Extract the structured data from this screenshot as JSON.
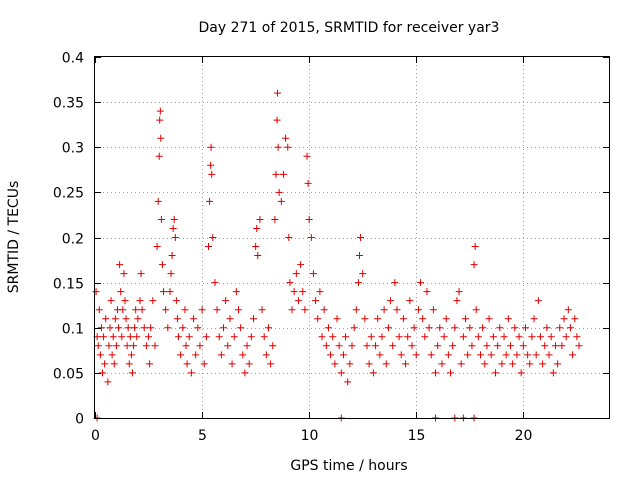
{
  "chart_data": {
    "type": "scatter",
    "title": "Day 271 of 2015, SRMTID for receiver yar3",
    "xlabel": "GPS time / hours",
    "ylabel": "SRMTID / TECUs",
    "xlim": [
      0,
      24
    ],
    "ylim": [
      0,
      0.4
    ],
    "x_ticks": [
      0,
      5,
      10,
      15,
      20
    ],
    "x_tick_labels": [
      "0",
      "5",
      "10",
      "15",
      "20"
    ],
    "y_ticks": [
      0,
      0.05,
      0.1,
      0.15,
      0.2,
      0.25,
      0.3,
      0.35,
      0.4
    ],
    "y_tick_labels": [
      "0",
      "0.05",
      "0.1",
      "0.15",
      "0.2",
      "0.25",
      "0.3",
      "0.35",
      "0.4"
    ],
    "grid": true,
    "marker": "plus",
    "color": "#e00000",
    "series": [
      {
        "name": "SRMTID",
        "points": [
          [
            0.05,
            0.14
          ],
          [
            0.1,
            0.09
          ],
          [
            0.15,
            0.08
          ],
          [
            0.2,
            0.12
          ],
          [
            0.25,
            0.07
          ],
          [
            0.3,
            0.1
          ],
          [
            0.35,
            0.05
          ],
          [
            0.4,
            0.09
          ],
          [
            0.45,
            0.06
          ],
          [
            0.5,
            0.11
          ],
          [
            0.6,
            0.04
          ],
          [
            0.65,
            0.08
          ],
          [
            0.7,
            0.1
          ],
          [
            0.75,
            0.13
          ],
          [
            0.8,
            0.07
          ],
          [
            0.85,
            0.09
          ],
          [
            0.9,
            0.06
          ],
          [
            0.95,
            0.11
          ],
          [
            1.0,
            0.08
          ],
          [
            1.05,
            0.12
          ],
          [
            1.1,
            0.1
          ],
          [
            1.15,
            0.17
          ],
          [
            1.2,
            0.14
          ],
          [
            1.25,
            0.09
          ],
          [
            1.3,
            0.12
          ],
          [
            1.35,
            0.16
          ],
          [
            1.4,
            0.13
          ],
          [
            1.45,
            0.11
          ],
          [
            1.5,
            0.08
          ],
          [
            1.55,
            0.1
          ],
          [
            1.6,
            0.06
          ],
          [
            1.65,
            0.09
          ],
          [
            1.7,
            0.07
          ],
          [
            1.75,
            0.05
          ],
          [
            1.8,
            0.08
          ],
          [
            1.85,
            0.1
          ],
          [
            1.9,
            0.12
          ],
          [
            1.95,
            0.09
          ],
          [
            2.0,
            0.11
          ],
          [
            2.1,
            0.13
          ],
          [
            2.15,
            0.16
          ],
          [
            2.2,
            0.12
          ],
          [
            2.3,
            0.1
          ],
          [
            2.4,
            0.08
          ],
          [
            2.5,
            0.09
          ],
          [
            2.55,
            0.06
          ],
          [
            2.6,
            0.1
          ],
          [
            2.7,
            0.13
          ],
          [
            2.8,
            0.08
          ],
          [
            2.9,
            0.19
          ],
          [
            2.95,
            0.24
          ],
          [
            3.0,
            0.29
          ],
          [
            3.02,
            0.33
          ],
          [
            3.05,
            0.34
          ],
          [
            3.07,
            0.31
          ],
          [
            3.1,
            0.22
          ],
          [
            3.15,
            0.17
          ],
          [
            3.2,
            0.14
          ],
          [
            3.3,
            0.12
          ],
          [
            3.4,
            0.1
          ],
          [
            3.5,
            0.14
          ],
          [
            3.55,
            0.16
          ],
          [
            3.6,
            0.18
          ],
          [
            3.65,
            0.21
          ],
          [
            3.7,
            0.22
          ],
          [
            3.75,
            0.2
          ],
          [
            3.8,
            0.13
          ],
          [
            3.85,
            0.11
          ],
          [
            3.9,
            0.09
          ],
          [
            4.0,
            0.07
          ],
          [
            4.1,
            0.1
          ],
          [
            4.2,
            0.12
          ],
          [
            4.25,
            0.08
          ],
          [
            4.3,
            0.06
          ],
          [
            4.4,
            0.09
          ],
          [
            4.5,
            0.05
          ],
          [
            4.6,
            0.11
          ],
          [
            4.7,
            0.07
          ],
          [
            4.8,
            0.1
          ],
          [
            4.9,
            0.08
          ],
          [
            5.0,
            0.12
          ],
          [
            5.1,
            0.06
          ],
          [
            5.2,
            0.09
          ],
          [
            5.3,
            0.19
          ],
          [
            5.35,
            0.24
          ],
          [
            5.4,
            0.28
          ],
          [
            5.42,
            0.3
          ],
          [
            5.45,
            0.27
          ],
          [
            5.5,
            0.2
          ],
          [
            5.6,
            0.15
          ],
          [
            5.7,
            0.12
          ],
          [
            5.8,
            0.09
          ],
          [
            5.9,
            0.07
          ],
          [
            6.0,
            0.1
          ],
          [
            6.1,
            0.13
          ],
          [
            6.2,
            0.08
          ],
          [
            6.3,
            0.11
          ],
          [
            6.4,
            0.06
          ],
          [
            6.5,
            0.09
          ],
          [
            6.6,
            0.14
          ],
          [
            6.7,
            0.12
          ],
          [
            6.8,
            0.1
          ],
          [
            6.9,
            0.07
          ],
          [
            7.0,
            0.05
          ],
          [
            7.1,
            0.08
          ],
          [
            7.2,
            0.06
          ],
          [
            7.3,
            0.09
          ],
          [
            7.4,
            0.11
          ],
          [
            7.5,
            0.19
          ],
          [
            7.55,
            0.21
          ],
          [
            7.6,
            0.18
          ],
          [
            7.7,
            0.22
          ],
          [
            7.8,
            0.12
          ],
          [
            7.9,
            0.09
          ],
          [
            8.0,
            0.07
          ],
          [
            8.1,
            0.1
          ],
          [
            8.2,
            0.06
          ],
          [
            8.3,
            0.08
          ],
          [
            8.4,
            0.22
          ],
          [
            8.45,
            0.27
          ],
          [
            8.5,
            0.33
          ],
          [
            8.52,
            0.36
          ],
          [
            8.55,
            0.3
          ],
          [
            8.6,
            0.25
          ],
          [
            8.7,
            0.24
          ],
          [
            8.8,
            0.27
          ],
          [
            8.9,
            0.31
          ],
          [
            9.0,
            0.3
          ],
          [
            9.05,
            0.2
          ],
          [
            9.1,
            0.15
          ],
          [
            9.2,
            0.12
          ],
          [
            9.3,
            0.14
          ],
          [
            9.4,
            0.16
          ],
          [
            9.5,
            0.13
          ],
          [
            9.6,
            0.17
          ],
          [
            9.7,
            0.14
          ],
          [
            9.8,
            0.12
          ],
          [
            9.9,
            0.29
          ],
          [
            9.95,
            0.26
          ],
          [
            10.0,
            0.22
          ],
          [
            10.1,
            0.2
          ],
          [
            10.2,
            0.16
          ],
          [
            10.3,
            0.13
          ],
          [
            10.4,
            0.11
          ],
          [
            10.5,
            0.14
          ],
          [
            10.6,
            0.09
          ],
          [
            10.7,
            0.12
          ],
          [
            10.8,
            0.08
          ],
          [
            10.9,
            0.1
          ],
          [
            11.0,
            0.07
          ],
          [
            11.1,
            0.09
          ],
          [
            11.2,
            0.06
          ],
          [
            11.3,
            0.11
          ],
          [
            11.4,
            0.08
          ],
          [
            11.5,
            0.05
          ],
          [
            11.6,
            0.07
          ],
          [
            11.7,
            0.09
          ],
          [
            11.8,
            0.04
          ],
          [
            11.9,
            0.06
          ],
          [
            12.0,
            0.08
          ],
          [
            12.1,
            0.1
          ],
          [
            12.2,
            0.12
          ],
          [
            12.3,
            0.15
          ],
          [
            12.35,
            0.18
          ],
          [
            12.4,
            0.2
          ],
          [
            12.5,
            0.16
          ],
          [
            12.6,
            0.11
          ],
          [
            12.7,
            0.08
          ],
          [
            12.8,
            0.06
          ],
          [
            12.9,
            0.09
          ],
          [
            13.0,
            0.05
          ],
          [
            13.1,
            0.08
          ],
          [
            13.2,
            0.11
          ],
          [
            13.3,
            0.07
          ],
          [
            13.4,
            0.09
          ],
          [
            13.5,
            0.12
          ],
          [
            13.6,
            0.06
          ],
          [
            13.7,
            0.1
          ],
          [
            13.8,
            0.13
          ],
          [
            13.9,
            0.08
          ],
          [
            14.0,
            0.15
          ],
          [
            14.1,
            0.12
          ],
          [
            14.2,
            0.09
          ],
          [
            14.3,
            0.07
          ],
          [
            14.4,
            0.11
          ],
          [
            14.5,
            0.06
          ],
          [
            14.6,
            0.09
          ],
          [
            14.7,
            0.13
          ],
          [
            14.8,
            0.08
          ],
          [
            14.9,
            0.1
          ],
          [
            15.0,
            0.07
          ],
          [
            15.1,
            0.12
          ],
          [
            15.2,
            0.15
          ],
          [
            15.3,
            0.11
          ],
          [
            15.4,
            0.09
          ],
          [
            15.5,
            0.14
          ],
          [
            15.6,
            0.1
          ],
          [
            15.7,
            0.07
          ],
          [
            15.8,
            0.12
          ],
          [
            15.9,
            0.05
          ],
          [
            16.0,
            0.08
          ],
          [
            16.1,
            0.1
          ],
          [
            16.2,
            0.06
          ],
          [
            16.3,
            0.09
          ],
          [
            16.4,
            0.11
          ],
          [
            16.5,
            0.07
          ],
          [
            16.6,
            0.05
          ],
          [
            16.7,
            0.08
          ],
          [
            16.8,
            0.1
          ],
          [
            16.9,
            0.13
          ],
          [
            17.0,
            0.14
          ],
          [
            17.1,
            0.06
          ],
          [
            17.2,
            0.09
          ],
          [
            17.3,
            0.11
          ],
          [
            17.4,
            0.07
          ],
          [
            17.5,
            0.1
          ],
          [
            17.6,
            0.08
          ],
          [
            17.7,
            0.17
          ],
          [
            17.75,
            0.19
          ],
          [
            17.8,
            0.12
          ],
          [
            17.9,
            0.09
          ],
          [
            18.0,
            0.07
          ],
          [
            18.1,
            0.1
          ],
          [
            18.2,
            0.06
          ],
          [
            18.3,
            0.08
          ],
          [
            18.4,
            0.11
          ],
          [
            18.5,
            0.07
          ],
          [
            18.6,
            0.09
          ],
          [
            18.7,
            0.05
          ],
          [
            18.8,
            0.08
          ],
          [
            18.9,
            0.1
          ],
          [
            19.0,
            0.06
          ],
          [
            19.1,
            0.09
          ],
          [
            19.2,
            0.07
          ],
          [
            19.3,
            0.11
          ],
          [
            19.4,
            0.08
          ],
          [
            19.5,
            0.06
          ],
          [
            19.6,
            0.1
          ],
          [
            19.7,
            0.07
          ],
          [
            19.8,
            0.09
          ],
          [
            19.9,
            0.05
          ],
          [
            20.0,
            0.08
          ],
          [
            20.1,
            0.1
          ],
          [
            20.2,
            0.07
          ],
          [
            20.3,
            0.06
          ],
          [
            20.4,
            0.09
          ],
          [
            20.5,
            0.11
          ],
          [
            20.6,
            0.07
          ],
          [
            20.7,
            0.13
          ],
          [
            20.8,
            0.09
          ],
          [
            20.9,
            0.06
          ],
          [
            21.0,
            0.08
          ],
          [
            21.1,
            0.1
          ],
          [
            21.2,
            0.07
          ],
          [
            21.3,
            0.09
          ],
          [
            21.4,
            0.05
          ],
          [
            21.5,
            0.08
          ],
          [
            21.6,
            0.06
          ],
          [
            21.7,
            0.1
          ],
          [
            21.8,
            0.08
          ],
          [
            21.9,
            0.11
          ],
          [
            22.0,
            0.09
          ],
          [
            22.1,
            0.12
          ],
          [
            22.2,
            0.1
          ],
          [
            22.3,
            0.07
          ],
          [
            22.4,
            0.11
          ],
          [
            22.5,
            0.09
          ],
          [
            22.6,
            0.08
          ],
          [
            0.1,
            0
          ],
          [
            11.5,
            0
          ],
          [
            15.9,
            0
          ],
          [
            16.8,
            0
          ],
          [
            17.2,
            0
          ],
          [
            17.7,
            0
          ]
        ]
      }
    ]
  }
}
